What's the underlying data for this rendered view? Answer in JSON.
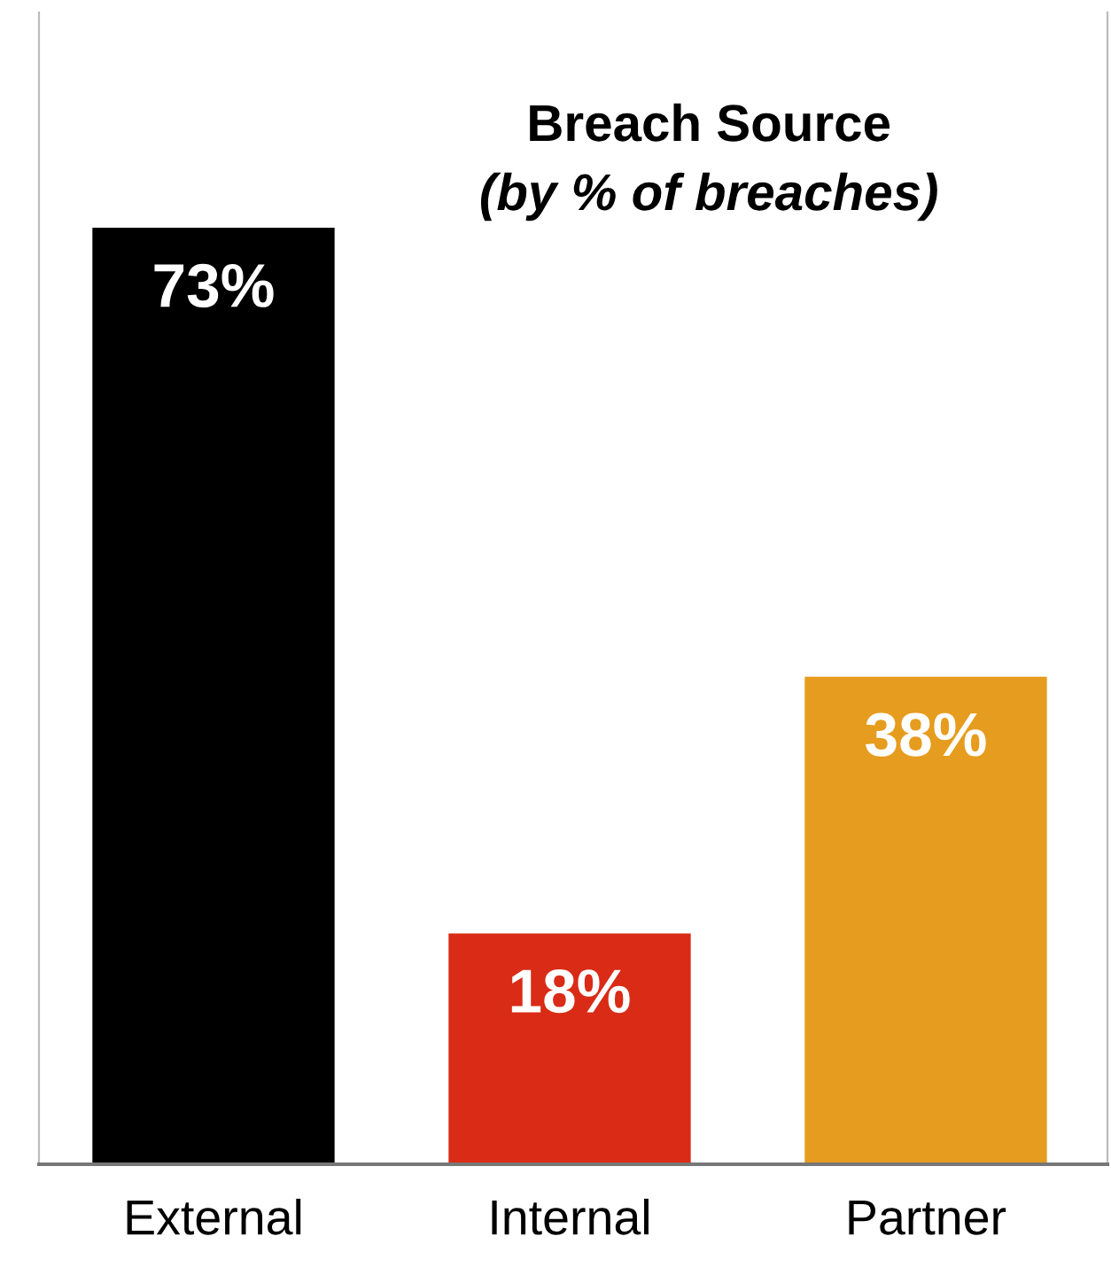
{
  "chart_data": {
    "type": "bar",
    "title": "Breach Source",
    "subtitle": "(by % of breaches)",
    "categories": [
      "External",
      "Internal",
      "Partner"
    ],
    "values": [
      73,
      18,
      38
    ],
    "colors": [
      "#000000",
      "#d92b16",
      "#e69c1e"
    ],
    "value_labels": [
      "73%",
      "18%",
      "38%"
    ],
    "grid": false,
    "legend": false
  }
}
